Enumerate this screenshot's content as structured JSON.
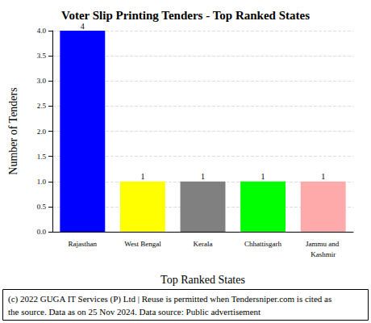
{
  "chart_data": {
    "type": "bar",
    "title": "Voter Slip Printing Tenders - Top Ranked States",
    "x_label": "Top Ranked States",
    "y_label": "Number of Tenders",
    "categories": [
      "Rajasthan",
      "West Bengal",
      "Kerala",
      "Chhattisgarh",
      "Jammu and Kashmir"
    ],
    "values": [
      4,
      1,
      1,
      1,
      1
    ],
    "colors": [
      "#0000ff",
      "#ffff00",
      "#808080",
      "#00ff00",
      "#ffaaaa"
    ],
    "ylim": [
      0,
      4
    ],
    "yticks": [
      {
        "value": 0,
        "label": "0.0"
      },
      {
        "value": 0.5,
        "label": "0.5"
      },
      {
        "value": 1,
        "label": "1.0"
      },
      {
        "value": 1.5,
        "label": "1.5"
      },
      {
        "value": 2,
        "label": "2.0"
      },
      {
        "value": 2.5,
        "label": "2.5"
      },
      {
        "value": 3,
        "label": "3.0"
      },
      {
        "value": 3.5,
        "label": "3.5"
      },
      {
        "value": 4,
        "label": "4.0"
      }
    ],
    "grid": true,
    "data_labels": true,
    "caption": "(c) 2022 GUGA IT Services (P) Ltd | Reuse is permitted when Tendersniper.com is cited as the source. Data as on 25 Nov 2024. Data source: Public advertisement"
  }
}
